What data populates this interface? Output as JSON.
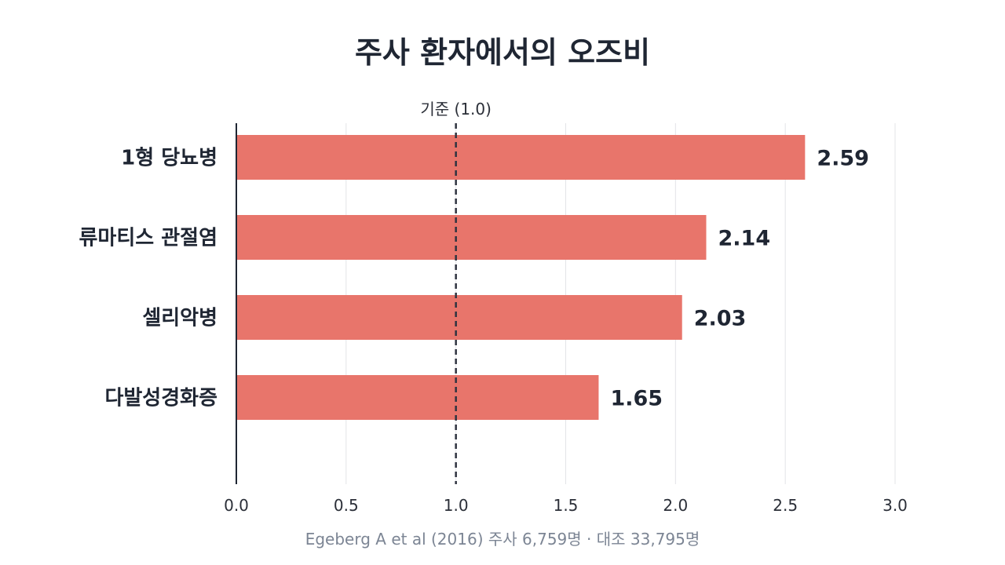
{
  "chart_data": {
    "type": "bar",
    "orientation": "horizontal",
    "title": "주사 환자에서의 오즈비",
    "categories": [
      "1형 당뇨병",
      "류마티스 관절염",
      "셀리악병",
      "다발성경화증"
    ],
    "values": [
      2.59,
      2.14,
      2.03,
      1.65
    ],
    "value_labels": [
      "2.59",
      "2.14",
      "2.03",
      "1.65"
    ],
    "xlim": [
      0,
      3.0
    ],
    "x_ticks": [
      0.0,
      0.5,
      1.0,
      1.5,
      2.0,
      2.5,
      3.0
    ],
    "x_tick_labels": [
      "0.0",
      "0.5",
      "1.0",
      "1.5",
      "2.0",
      "2.5",
      "3.0"
    ],
    "reference_line": {
      "value": 1.0,
      "label": "기준 (1.0)",
      "style": "dashed"
    },
    "grid": "vertical",
    "bar_color": "#e8756b",
    "source": "Egeberg A et al (2016) 주사 6,759명 · 대조 33,795명"
  }
}
